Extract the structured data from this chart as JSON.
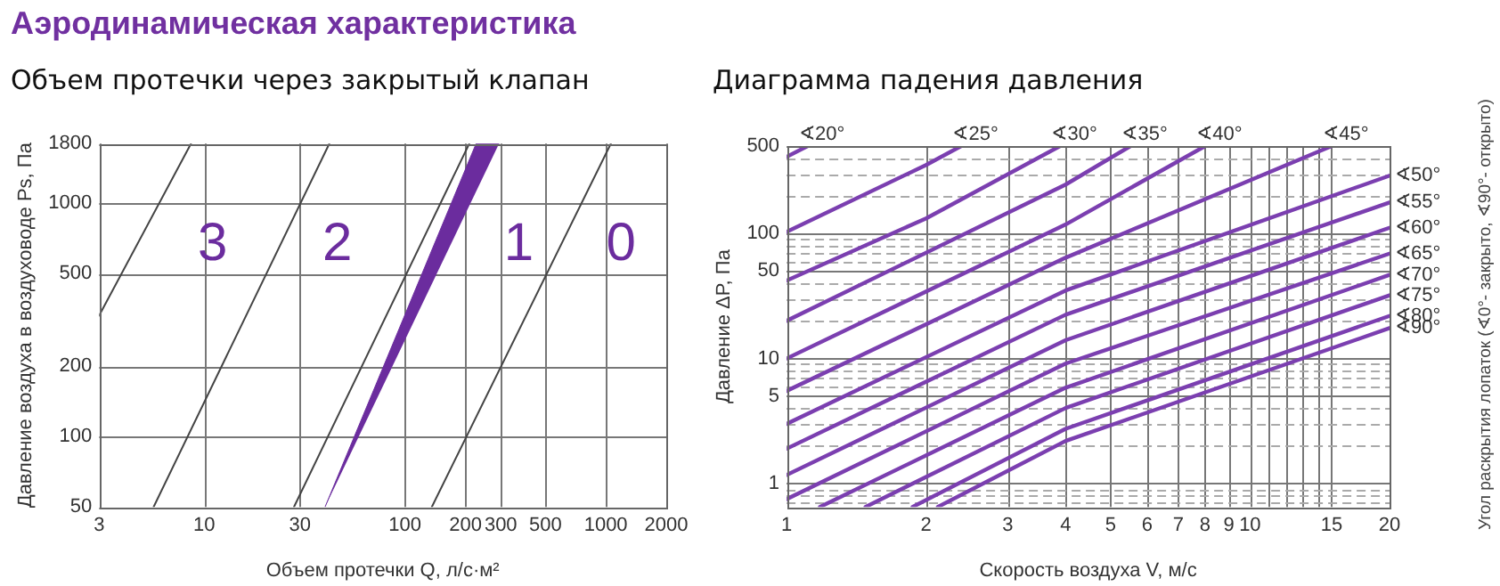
{
  "chart_data": [
    {
      "type": "line",
      "title": "Аэродинамическая характеристика",
      "subtitle": "Объем протечки через закрытый клапан",
      "xlabel": "Объем протечки Q, л/с·м²",
      "ylabel": "Давление воздуха в воздуховоде Ps, Па",
      "log": "xy",
      "grid": true,
      "legend": false,
      "xlim": [
        3,
        2000
      ],
      "xticks": [
        3,
        10,
        30,
        100,
        200,
        300,
        500,
        1000,
        2000
      ],
      "ylim": [
        50,
        1800
      ],
      "yticks": [
        50,
        100,
        200,
        500,
        1000,
        1800
      ],
      "series": [
        {
          "type": "line",
          "color": "#444444",
          "x": [
            3,
            8.6
          ],
          "values": [
            330,
            1800
          ]
        },
        {
          "type": "line",
          "color": "#444444",
          "x": [
            5.6,
            42
          ],
          "values": [
            50,
            1800
          ]
        },
        {
          "type": "line",
          "color": "#444444",
          "x": [
            28,
            209
          ],
          "values": [
            50,
            1800
          ]
        },
        {
          "type": "area",
          "color": "#6b2c9e",
          "x": [
            40,
            226,
            294
          ],
          "values": [
            50,
            1800,
            1800
          ]
        },
        {
          "type": "line",
          "color": "#444444",
          "x": [
            136,
            1060
          ],
          "values": [
            50,
            1800
          ]
        }
      ],
      "annotations": [
        "3",
        "2",
        "1",
        "0"
      ]
    },
    {
      "type": "line",
      "subtitle": "Диаграмма падения давления",
      "xlabel": "Скорость воздуха V, м/с",
      "ylabel": "Давление ΔP, Па",
      "legend_title": "Угол раскрытия лопаток (∢0°- закрыто, ∢90°- открыто)",
      "log": "xy",
      "grid": true,
      "legend": false,
      "xlim": [
        1,
        20
      ],
      "xticks": [
        1,
        2,
        3,
        4,
        5,
        6,
        7,
        8,
        9,
        10,
        {
          "value": 11,
          "label": null
        },
        {
          "value": 12,
          "label": null
        },
        {
          "value": 13,
          "label": null
        },
        {
          "value": 14,
          "label": null
        },
        15,
        20
      ],
      "ylim": [
        0.65,
        500
      ],
      "yticks": [
        {
          "value": 0.7,
          "label": null
        },
        {
          "value": 0.8,
          "label": null
        },
        {
          "value": 0.9,
          "label": null
        },
        1,
        {
          "value": 2,
          "label": null
        },
        {
          "value": 3,
          "label": null
        },
        {
          "value": 4,
          "label": null
        },
        5,
        {
          "value": 6,
          "label": null
        },
        {
          "value": 7,
          "label": null
        },
        {
          "value": 8,
          "label": null
        },
        {
          "value": 9,
          "label": null
        },
        10,
        {
          "value": 20,
          "label": null
        },
        {
          "value": 30,
          "label": null
        },
        {
          "value": 40,
          "label": null
        },
        50,
        {
          "value": 60,
          "label": null
        },
        {
          "value": 70,
          "label": null
        },
        {
          "value": 80,
          "label": null
        },
        {
          "value": 90,
          "label": null
        },
        100,
        {
          "value": 200,
          "label": null
        },
        {
          "value": 300,
          "label": null
        },
        {
          "value": 400,
          "label": null
        },
        500
      ],
      "series": [
        {
          "type": "line",
          "name": "∢20°",
          "color": "#7b3fb0",
          "x": [
            1,
            1.11
          ],
          "values": [
            410,
            500
          ]
        },
        {
          "type": "line",
          "name": "∢25°",
          "color": "#7b3fb0",
          "x": [
            1,
            2,
            2.38
          ],
          "values": [
            103,
            353,
            500
          ]
        },
        {
          "type": "line",
          "name": "∢30°",
          "color": "#7b3fb0",
          "x": [
            1,
            2,
            3.89
          ],
          "values": [
            42,
            132,
            500
          ]
        },
        {
          "type": "line",
          "name": "∢35°",
          "color": "#7b3fb0",
          "x": [
            1,
            4,
            5.52
          ],
          "values": [
            20,
            246,
            500
          ]
        },
        {
          "type": "line",
          "name": "∢40°",
          "color": "#7b3fb0",
          "x": [
            1,
            4,
            8
          ],
          "values": [
            10,
            118,
            500
          ]
        },
        {
          "type": "line",
          "name": "∢45°",
          "color": "#7b3fb0",
          "x": [
            1,
            4,
            15
          ],
          "values": [
            5.5,
            64,
            500
          ]
        },
        {
          "type": "line",
          "name": "∢50°",
          "color": "#7b3fb0",
          "x": [
            1,
            4,
            20
          ],
          "values": [
            3,
            35,
            290
          ]
        },
        {
          "type": "line",
          "name": "∢55°",
          "color": "#7b3fb0",
          "x": [
            1,
            4,
            20
          ],
          "values": [
            1.9,
            22.4,
            177
          ]
        },
        {
          "type": "line",
          "name": "∢60°",
          "color": "#7b3fb0",
          "x": [
            1,
            4,
            20
          ],
          "values": [
            1.17,
            14,
            111
          ]
        },
        {
          "type": "line",
          "name": "∢65°",
          "color": "#7b3fb0",
          "x": [
            1,
            4,
            20
          ],
          "values": [
            0.75,
            9.1,
            69
          ]
        },
        {
          "type": "line",
          "name": "∢70°",
          "color": "#7b3fb0",
          "x": [
            1.18,
            4,
            20
          ],
          "values": [
            0.65,
            5.84,
            46.6
          ]
        },
        {
          "type": "line",
          "name": "∢75°",
          "color": "#7b3fb0",
          "x": [
            1.48,
            4,
            20
          ],
          "values": [
            0.65,
            4.02,
            32
          ]
        },
        {
          "type": "line",
          "name": "∢80°",
          "color": "#7b3fb0",
          "x": [
            1.87,
            4,
            20
          ],
          "values": [
            0.65,
            2.74,
            21.9
          ]
        },
        {
          "type": "line",
          "name": "∢90°",
          "color": "#7b3fb0",
          "x": [
            2.12,
            4,
            20
          ],
          "values": [
            0.65,
            2.19,
            17.5
          ]
        }
      ]
    }
  ]
}
